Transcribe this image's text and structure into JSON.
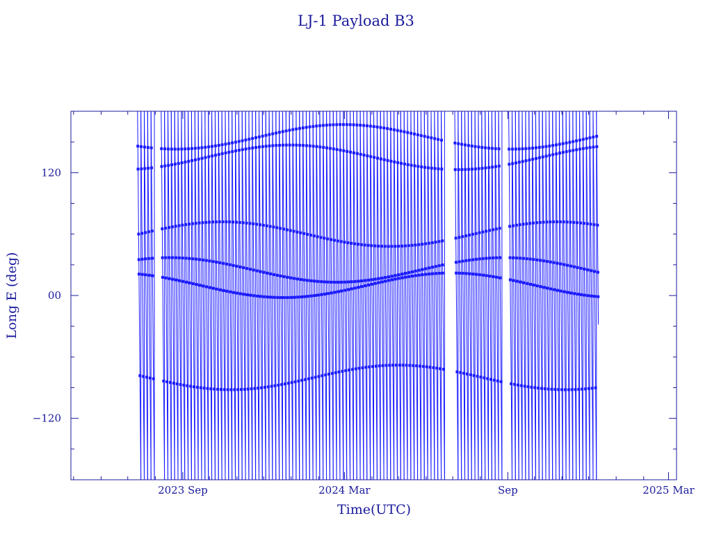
{
  "chart_data": {
    "type": "line",
    "title": "LJ-1 Payload B3",
    "xlabel": "Time(UTC)",
    "ylabel": "Long E (deg)",
    "xlim": [
      "2023-04-28",
      "2025-03-10"
    ],
    "ylim": [
      -180,
      180
    ],
    "x_ticks": [
      {
        "label": "2023 Sep",
        "date": "2023-09-01"
      },
      {
        "label": "2024 Mar",
        "date": "2024-03-01"
      },
      {
        "label": "Sep",
        "date": "2024-09-01"
      },
      {
        "label": "2025 Mar",
        "date": "2025-03-01"
      }
    ],
    "y_ticks": [
      {
        "label": "120",
        "value": 120
      },
      {
        "label": "00",
        "value": 0
      },
      {
        "label": "−120",
        "value": -120
      }
    ],
    "grid": false,
    "series": [
      {
        "color": "#1a1aff",
        "marker": "square",
        "data_start": "2023-07-12",
        "data_end": "2024-12-12",
        "gaps": [
          [
            "2023-08-01",
            "2023-08-05"
          ],
          [
            "2024-06-25",
            "2024-07-02"
          ],
          [
            "2024-08-26",
            "2024-08-30"
          ]
        ],
        "wraps_every_days": 3.8,
        "ascending_pass_bands_deg": [
          60,
          25,
          10
        ],
        "descending_pass_bands_deg": [
          -80,
          155,
          135
        ]
      }
    ]
  },
  "colors": {
    "frame": "#1a1a9c",
    "series": "#1a1aff",
    "background": "#ffffff"
  }
}
